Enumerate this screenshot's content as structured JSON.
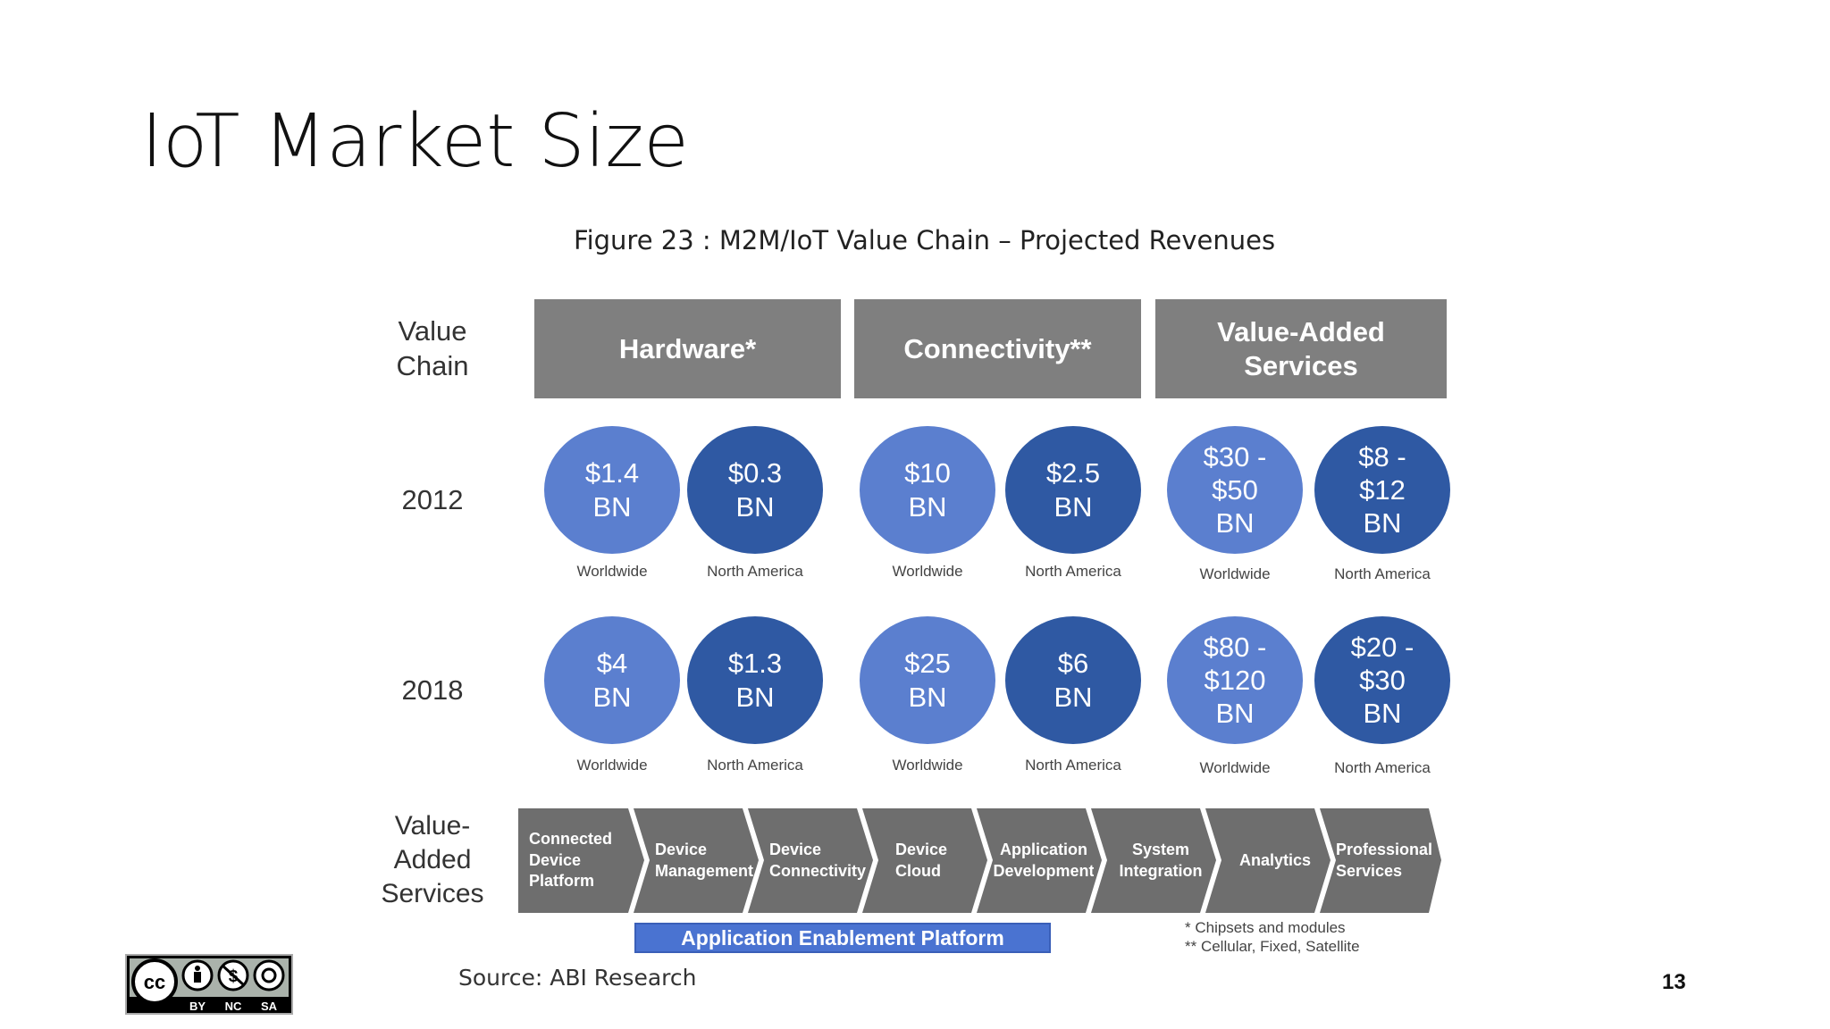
{
  "slide": {
    "title": "IoT Market Size",
    "page_number": "13",
    "source": "Source: ABI Research"
  },
  "figure": {
    "caption": "Figure 23 : M2M/IoT Value Chain – Projected Revenues",
    "row_labels": {
      "value_chain": "Value\nChain",
      "y2012": "2012",
      "y2018": "2018",
      "vas": "Value-\nAdded\nServices"
    },
    "categories": [
      {
        "name": "Hardware*"
      },
      {
        "name": "Connectivity**"
      },
      {
        "name": "Value-Added\nServices"
      }
    ],
    "region_labels": {
      "worldwide": "Worldwide",
      "north_america": "North America"
    },
    "revenues_2012": [
      "$1.4\nBN",
      "$0.3\nBN",
      "$10\nBN",
      "$2.5\nBN",
      "$30 -\n$50\nBN",
      "$8 -\n$12\nBN"
    ],
    "revenues_2018": [
      "$4\nBN",
      "$1.3\nBN",
      "$25\nBN",
      "$6\nBN",
      "$80 -\n$120\nBN",
      "$20 -\n$30\nBN"
    ],
    "value_added_services": [
      "Connected\nDevice\nPlatform",
      "Device\nManagement",
      "Device\nConnectivity",
      "Device\nCloud",
      "Application\nDevelopment",
      "System\nIntegration",
      "Analytics",
      "Professional\nServices"
    ],
    "platform_bar": "Application Enablement Platform",
    "footnotes": [
      "*  Chipsets and modules",
      "**  Cellular, Fixed, Satellite"
    ]
  },
  "license": {
    "badge_labels": [
      "cc",
      "BY",
      "NC",
      "SA"
    ]
  },
  "colors": {
    "header_gray": "#7f7f7f",
    "chevron_gray": "#6e6e6e",
    "worldwide_blue": "#5b7fcf",
    "north_america_blue": "#2f59a3",
    "platform_blue": "#4a73d1"
  }
}
